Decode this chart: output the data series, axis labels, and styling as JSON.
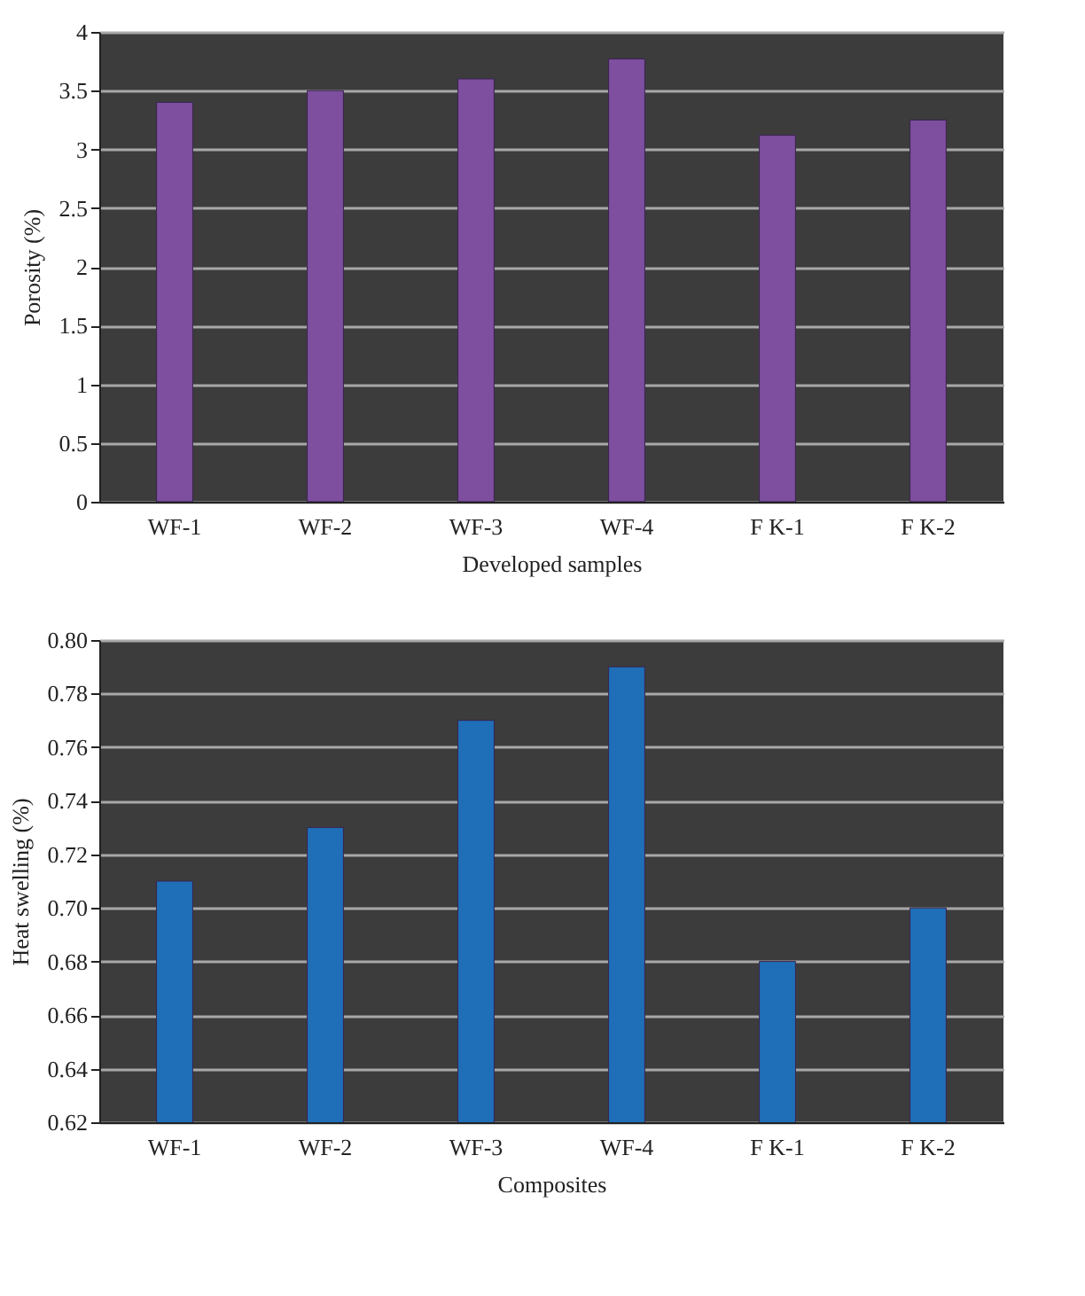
{
  "chart_data": [
    {
      "type": "bar",
      "xlabel": "Developed samples",
      "ylabel": "Porosity (%)",
      "categories": [
        "WF-1",
        "WF-2",
        "WF-3",
        "WF-4",
        "F K-1",
        "F K-2"
      ],
      "values": [
        3.4,
        3.5,
        3.6,
        3.77,
        3.12,
        3.25
      ],
      "color": "#7d4f9e",
      "ylim": [
        0,
        4
      ],
      "yticks": [
        0,
        0.5,
        1,
        1.5,
        2,
        2.5,
        3,
        3.5,
        4
      ],
      "grid": "y"
    },
    {
      "type": "bar",
      "xlabel": "Composites",
      "ylabel": "Heat swelling (%)",
      "categories": [
        "WF-1",
        "WF-2",
        "WF-3",
        "WF-4",
        "F K-1",
        "F K-2"
      ],
      "values": [
        0.71,
        0.73,
        0.77,
        0.79,
        0.68,
        0.7
      ],
      "color": "#1f6fb8",
      "ylim": [
        0.62,
        0.8
      ],
      "yticks": [
        {
          "value": 0.62,
          "label": "0.62"
        },
        {
          "value": 0.64,
          "label": "0.64"
        },
        {
          "value": 0.66,
          "label": "0.66"
        },
        {
          "value": 0.68,
          "label": "0.68"
        },
        {
          "value": 0.7,
          "label": "0.70"
        },
        {
          "value": 0.72,
          "label": "0.72"
        },
        {
          "value": 0.74,
          "label": "0.74"
        },
        {
          "value": 0.76,
          "label": "0.76"
        },
        {
          "value": 0.78,
          "label": "0.78"
        },
        {
          "value": 0.8,
          "label": "0.80"
        }
      ],
      "grid": "y"
    }
  ]
}
